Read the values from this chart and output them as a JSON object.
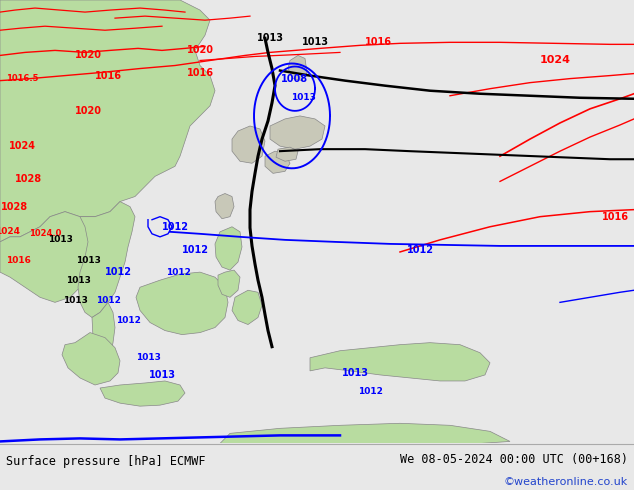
{
  "title_left": "Surface pressure [hPa] ECMWF",
  "title_right": "We 08-05-2024 00:00 UTC (00+168)",
  "copyright": "©weatheronline.co.uk",
  "ocean_color": "#d4e8f4",
  "land_green": "#b8dca0",
  "land_gray": "#c8c8b8",
  "bottom_bg": "#e8e8e8",
  "copyright_color": "#2244cc",
  "title_fontsize": 8.5
}
